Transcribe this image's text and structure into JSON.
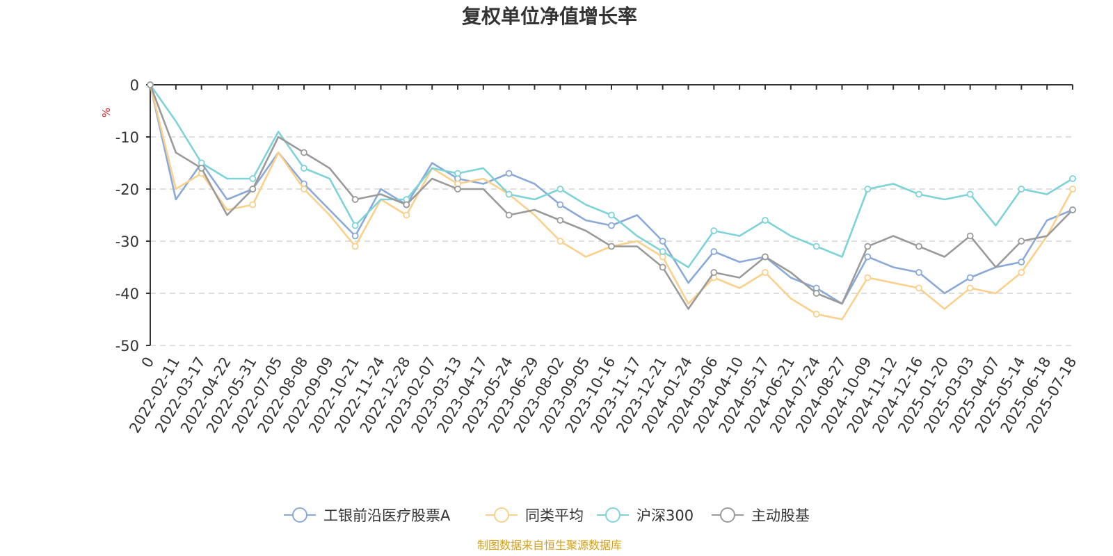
{
  "chart_data": {
    "type": "line",
    "title": "复权单位净值增长率",
    "ylabel": "%",
    "ylim": [
      -50,
      0
    ],
    "yticks": [
      0,
      -10,
      -20,
      -30,
      -40,
      -50
    ],
    "x_tick_labels": [
      "0",
      "2022-02-11",
      "2022-03-17",
      "2022-04-22",
      "2022-05-31",
      "2022-07-05",
      "2022-08-08",
      "2022-09-09",
      "2022-10-21",
      "2022-11-24",
      "2022-12-28",
      "2023-02-07",
      "2023-03-13",
      "2023-04-17",
      "2023-05-24",
      "2023-06-29",
      "2023-08-02",
      "2023-09-05",
      "2023-10-16",
      "2023-11-17",
      "2023-12-21",
      "2024-01-24",
      "2024-03-06",
      "2024-04-10",
      "2024-05-17",
      "2024-06-21",
      "2024-07-24",
      "2024-08-27",
      "2024-10-09",
      "2024-11-12",
      "2024-12-16",
      "2025-01-20",
      "2025-03-03",
      "2025-04-07",
      "2025-05-14",
      "2025-06-18",
      "2025-07-18"
    ],
    "x_index": [
      0,
      1,
      2,
      3,
      4,
      5,
      6,
      7,
      8,
      9,
      10,
      11,
      12,
      13,
      14,
      15,
      16,
      17,
      18,
      19,
      20,
      21,
      22,
      23,
      24,
      25,
      26,
      27,
      28,
      29,
      30,
      31,
      32,
      33,
      34,
      35,
      36
    ],
    "series": [
      {
        "name": "工银前沿医疗股票A",
        "color": "#8aa9d8",
        "values": [
          0,
          -22,
          -15,
          -22,
          -20,
          -13,
          -19,
          -24,
          -29,
          -20,
          -23,
          -15,
          -18,
          -19,
          -17,
          -19,
          -23,
          -26,
          -27,
          -25,
          -30,
          -38,
          -32,
          -34,
          -33,
          -37,
          -39,
          -42,
          -33,
          -35,
          -36,
          -40,
          -37,
          -35,
          -34,
          -26,
          -24
        ]
      },
      {
        "name": "同类平均",
        "color": "#fad08b",
        "values": [
          0,
          -20,
          -17,
          -24,
          -23,
          -13,
          -20,
          -25,
          -31,
          -22,
          -25,
          -16,
          -19,
          -18,
          -21,
          -25,
          -30,
          -33,
          -31,
          -30,
          -33,
          -42,
          -37,
          -39,
          -36,
          -41,
          -44,
          -45,
          -37,
          -38,
          -39,
          -43,
          -39,
          -40,
          -36,
          -29,
          -20
        ]
      },
      {
        "name": "沪深300",
        "color": "#7dd3d8",
        "values": [
          0,
          -7,
          -15,
          -18,
          -18,
          -9,
          -16,
          -18,
          -27,
          -22,
          -22,
          -16,
          -17,
          -16,
          -21,
          -22,
          -20,
          -23,
          -25,
          -29,
          -32,
          -35,
          -28,
          -29,
          -26,
          -29,
          -31,
          -33,
          -20,
          -19,
          -21,
          -22,
          -21,
          -27,
          -20,
          -21,
          -18
        ]
      },
      {
        "name": "主动股基",
        "color": "#9a9a9a",
        "values": [
          0,
          -13,
          -16,
          -25,
          -20,
          -10,
          -13,
          -16,
          -22,
          -21,
          -23,
          -18,
          -20,
          -20,
          -25,
          -24,
          -26,
          -28,
          -31,
          -31,
          -35,
          -43,
          -36,
          -37,
          -33,
          -36,
          -40,
          -42,
          -31,
          -29,
          -31,
          -33,
          -29,
          -35,
          -30,
          -29,
          -24
        ]
      }
    ],
    "legend_position": "bottom-center",
    "source_note": "制图数据来自恒生聚源数据库"
  }
}
